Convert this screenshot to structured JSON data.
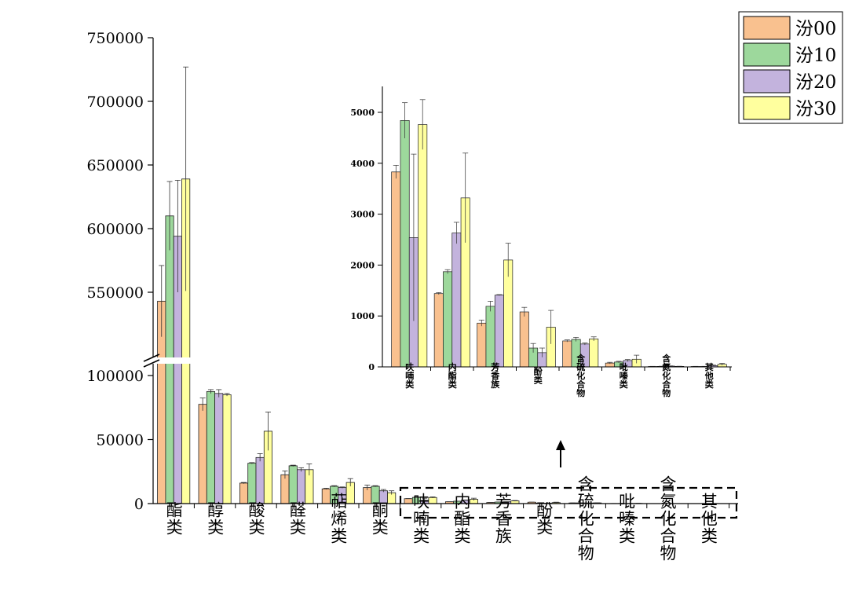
{
  "chart_data": [
    {
      "type": "bar",
      "categories": [
        "酯类",
        "醇类",
        "酸类",
        "醛类",
        "萜烯类",
        "酮类",
        "呋喃类",
        "内酯类",
        "芳香族",
        "酚类",
        "含硫化合物",
        "吡嗪类",
        "含氮化合物",
        "其他类"
      ],
      "series": [
        {
          "name": "汾00",
          "color": "#F9C18F",
          "values": [
            543000,
            77500,
            16000,
            22500,
            11500,
            12500,
            3830,
            1440,
            860,
            1080,
            510,
            75,
            8,
            8
          ],
          "errors": [
            28000,
            5000,
            500,
            3000,
            500,
            2000,
            130,
            20,
            60,
            90,
            20,
            15,
            3,
            3
          ]
        },
        {
          "name": "汾10",
          "color": "#9DD89C",
          "values": [
            610000,
            87500,
            31500,
            29500,
            13500,
            13500,
            4840,
            1870,
            1190,
            370,
            540,
            95,
            10,
            8
          ],
          "errors": [
            27000,
            1500,
            500,
            500,
            500,
            500,
            350,
            40,
            100,
            90,
            40,
            15,
            3,
            3
          ]
        },
        {
          "name": "汾20",
          "color": "#C3B3DD",
          "values": [
            594000,
            86000,
            36000,
            26500,
            12500,
            10000,
            2540,
            2630,
            1410,
            280,
            450,
            125,
            15,
            25
          ],
          "errors": [
            44000,
            3000,
            3000,
            1500,
            500,
            1000,
            1640,
            210,
            10,
            90,
            20,
            20,
            5,
            10
          ]
        },
        {
          "name": "汾30",
          "color": "#FFFF9E",
          "values": [
            639000,
            85000,
            56500,
            26500,
            16500,
            8500,
            4760,
            3320,
            2100,
            780,
            550,
            150,
            10,
            50
          ],
          "errors": [
            88000,
            1000,
            15000,
            4500,
            3000,
            1500,
            490,
            880,
            330,
            330,
            40,
            80,
            3,
            20
          ]
        }
      ],
      "y_ticks": [
        "0",
        "50000",
        "100000",
        "550000",
        "600000",
        "650000",
        "700000",
        "750000"
      ],
      "y_axis_break": [
        110000,
        505000
      ],
      "ylim": [
        0,
        750000
      ],
      "legend": "top-right",
      "grid": false
    },
    {
      "type": "bar",
      "inset_of": 0,
      "categories": [
        "呋喃类",
        "内酯类",
        "芳香族",
        "酚类",
        "含硫化合物",
        "吡嗪类",
        "含氮化合物",
        "其他类"
      ],
      "series_source": "same series as main chart, categories 7-14",
      "y_ticks": [
        "0",
        "1000",
        "2000",
        "3000",
        "4000",
        "5000"
      ],
      "ylim": [
        0,
        5500
      ],
      "grid": false
    }
  ]
}
